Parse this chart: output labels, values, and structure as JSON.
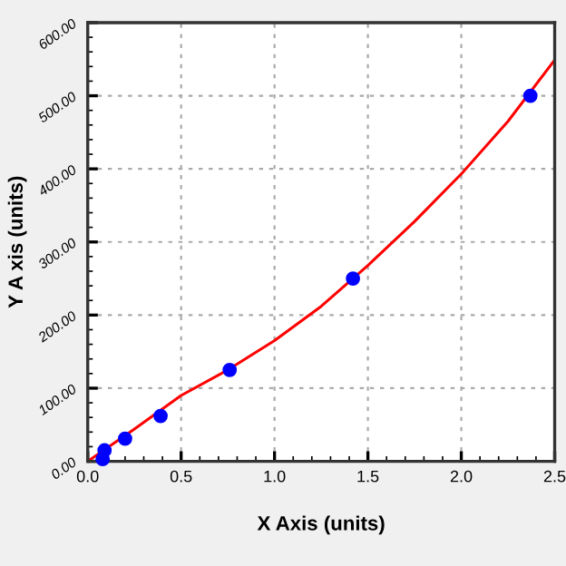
{
  "chart_data": {
    "type": "scatter",
    "xlabel": "X Axis (units)",
    "ylabel": "Y A xis (units)",
    "xlim": [
      0,
      2.5
    ],
    "ylim": [
      0,
      600
    ],
    "xticks": [
      {
        "value": 0,
        "label": "0.0"
      },
      0.5,
      {
        "value": 1,
        "label": "1.0"
      },
      1.5,
      {
        "value": 2,
        "label": "2.0"
      },
      2.5
    ],
    "yticks": [
      {
        "value": 0,
        "label": "0.00"
      },
      {
        "value": 100,
        "label": "100.00"
      },
      {
        "value": 200,
        "label": "200.00"
      },
      {
        "value": 300,
        "label": "300.00"
      },
      {
        "value": 400,
        "label": "400.00"
      },
      {
        "value": 500,
        "label": "500.00"
      },
      {
        "value": 600,
        "label": "600.00"
      }
    ],
    "grid": true,
    "series": [
      {
        "marker": "circle",
        "color": "#0000ff",
        "x": [
          0.08,
          0.09,
          0.2,
          0.39,
          0.76,
          1.42,
          2.37
        ],
        "values": [
          3,
          15,
          31,
          62,
          125,
          250,
          500
        ]
      },
      {
        "type": "line",
        "color": "#ff0000",
        "x": [
          0,
          0.25,
          0.5,
          0.75,
          1.0,
          1.25,
          1.5,
          1.75,
          2.0,
          2.25,
          2.5
        ],
        "values": [
          0,
          44,
          90,
          125,
          165,
          212,
          268,
          328,
          393,
          465,
          549
        ]
      }
    ]
  }
}
